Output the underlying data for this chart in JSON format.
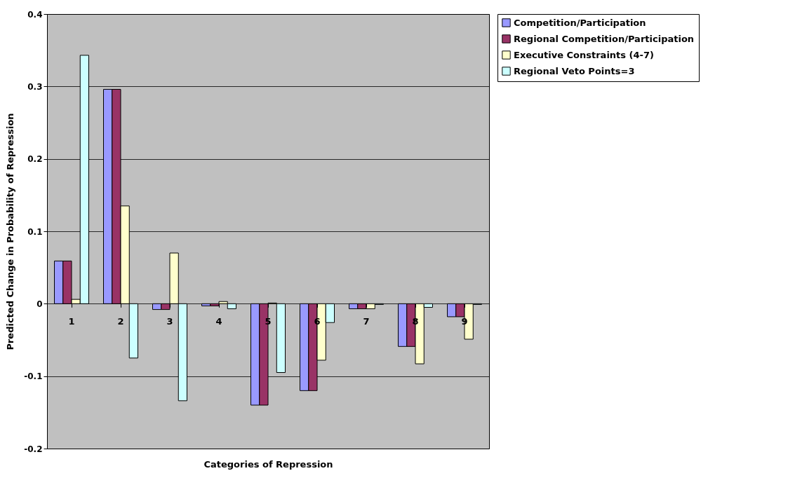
{
  "chart_data": {
    "type": "bar",
    "xlabel": "Categories of Repression",
    "ylabel": "Predicted Change in Probability of Repression",
    "categories": [
      "1",
      "2",
      "3",
      "4",
      "5",
      "6",
      "7",
      "8",
      "9"
    ],
    "series": [
      {
        "name": "Competition/Participation",
        "color": "#9999ff",
        "values": [
          0.059,
          0.296,
          -0.008,
          -0.003,
          -0.14,
          -0.12,
          -0.007,
          -0.059,
          -0.018
        ]
      },
      {
        "name": "Regional Competition/Participation",
        "color": "#993366",
        "values": [
          0.059,
          0.296,
          -0.008,
          -0.003,
          -0.14,
          -0.12,
          -0.007,
          -0.059,
          -0.018
        ]
      },
      {
        "name": "Executive Constraints (4-7)",
        "color": "#ffffcc",
        "values": [
          0.006,
          0.135,
          0.07,
          0.003,
          0.001,
          -0.078,
          -0.007,
          -0.083,
          -0.049
        ]
      },
      {
        "name": "Regional Veto Points=3",
        "color": "#ccffff",
        "values": [
          0.343,
          -0.075,
          -0.134,
          -0.007,
          -0.095,
          -0.026,
          -0.001,
          -0.005,
          -0.001
        ]
      }
    ],
    "ylim": [
      -0.2,
      0.4
    ],
    "yticks": [
      -0.2,
      -0.1,
      0,
      0.1,
      0.2,
      0.3,
      0.4
    ],
    "grid": "y",
    "legend": "right"
  }
}
